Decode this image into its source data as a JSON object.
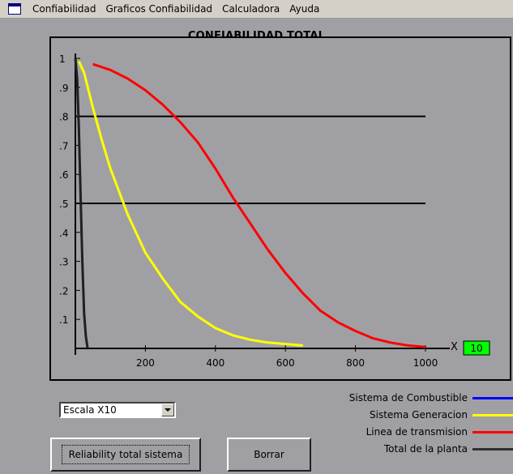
{
  "menu": {
    "items": [
      "Confiabilidad",
      "Graficos Confiabilidad",
      "Calculadora",
      "Ayuda"
    ]
  },
  "chart": {
    "title": "CONFIABILIDAD TOTAL",
    "x_axis_symbol": "X",
    "x_scale_value": "10",
    "scale_box_color": "#00ff00"
  },
  "chart_data": {
    "type": "line",
    "title": "CONFIABILIDAD TOTAL",
    "xlabel": "X",
    "ylabel": "",
    "xlim": [
      0,
      1050
    ],
    "ylim": [
      0,
      1
    ],
    "x_ticks": [
      200,
      400,
      600,
      800,
      1000
    ],
    "y_ticks": [
      ".1",
      ".2",
      ".3",
      ".4",
      ".5",
      ".6",
      ".7",
      ".8",
      ".9",
      "1"
    ],
    "reference_lines": [
      0.8,
      0.5
    ],
    "series": [
      {
        "name": "Sistema de Combustible",
        "color": "#0000ff",
        "x": [],
        "y": []
      },
      {
        "name": "Sistema Generacion",
        "color": "#ffff00",
        "x": [
          10,
          25,
          50,
          75,
          100,
          150,
          200,
          250,
          300,
          350,
          400,
          450,
          500,
          550,
          600,
          650
        ],
        "y": [
          0.99,
          0.95,
          0.83,
          0.72,
          0.62,
          0.46,
          0.33,
          0.24,
          0.16,
          0.11,
          0.07,
          0.045,
          0.03,
          0.02,
          0.015,
          0.01
        ]
      },
      {
        "name": "Linea de transmision",
        "color": "#ff0000",
        "x": [
          50,
          100,
          150,
          200,
          250,
          300,
          350,
          400,
          450,
          500,
          550,
          600,
          650,
          700,
          750,
          800,
          850,
          900,
          950,
          1000
        ],
        "y": [
          0.98,
          0.96,
          0.93,
          0.89,
          0.84,
          0.78,
          0.71,
          0.62,
          0.52,
          0.43,
          0.34,
          0.26,
          0.19,
          0.13,
          0.09,
          0.06,
          0.035,
          0.02,
          0.01,
          0.005
        ]
      },
      {
        "name": "Total de la planta",
        "color": "#202020",
        "x": [
          0,
          5,
          10,
          15,
          20,
          25,
          30,
          35
        ],
        "y": [
          1.0,
          0.93,
          0.76,
          0.52,
          0.3,
          0.12,
          0.04,
          0.0
        ]
      }
    ]
  },
  "controls": {
    "scale_select_value": "Escala X10",
    "reliability_button_label": "Reliability total sistema",
    "clear_button_label": "Borrar"
  }
}
